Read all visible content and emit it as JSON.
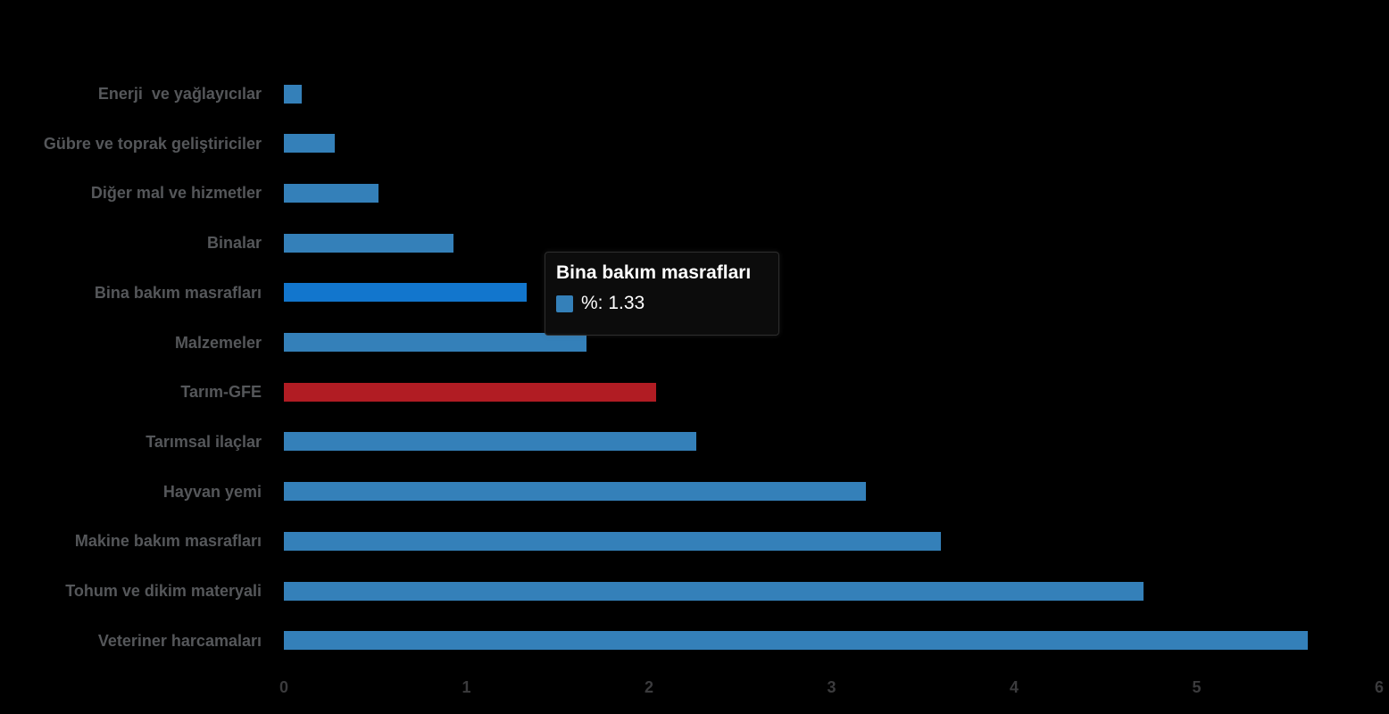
{
  "chart_data": {
    "type": "bar",
    "orientation": "horizontal",
    "title": "",
    "xlabel": "",
    "ylabel": "",
    "categories": [
      "Enerji  ve yağlayıcılar",
      "Gübre ve toprak geliştiriciler",
      "Diğer mal ve hizmetler",
      "Binalar",
      "Bina bakım masrafları",
      "Malzemeler",
      "Tarım-GFE",
      "Tarımsal ilaçlar",
      "Hayvan yemi",
      "Makine bakım masrafları",
      "Tohum ve dikim materyali",
      "Veteriner harcamaları"
    ],
    "values": [
      0.1,
      0.28,
      0.52,
      0.93,
      1.33,
      1.66,
      2.04,
      2.26,
      3.19,
      3.6,
      4.71,
      5.61
    ],
    "series_name": "%",
    "xlim": [
      0,
      6
    ],
    "x_ticks": [
      "0",
      "1",
      "2",
      "3",
      "4",
      "5",
      "6"
    ],
    "grid": false,
    "legend": "none",
    "hovered_index": 4,
    "accent_index": 6,
    "colors": {
      "bar_default": "#3480b9",
      "bar_hover": "#1276cd",
      "bar_accent": "#b11c23",
      "label_text": "#55575a",
      "tick_text": "#3b3b3d",
      "background": "#000000"
    }
  },
  "tooltip": {
    "title": "Bina bakım masrafları",
    "series_label": "%",
    "value": "1.33",
    "value_text": "%: 1.33",
    "text_color": "#ffffff"
  }
}
